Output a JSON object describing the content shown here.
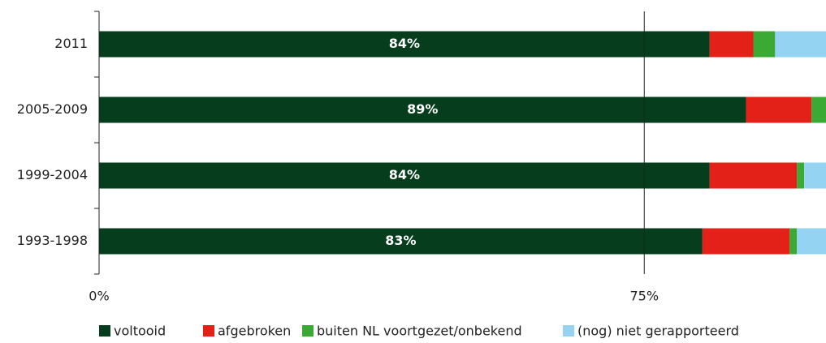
{
  "chart_data": {
    "type": "stacked-barh",
    "categories": [
      "2011",
      "2005-2009",
      "1999-2004",
      "1993-1998"
    ],
    "series": [
      {
        "name": "voltooid",
        "color": "#053d1d",
        "values": [
          84,
          89,
          84,
          83
        ],
        "value_labels": [
          "84%",
          "89%",
          "84%",
          "83%"
        ]
      },
      {
        "name": "afgebroken",
        "color": "#e32119",
        "values": [
          6,
          9,
          12,
          12
        ]
      },
      {
        "name": "buiten NL voortgezet/onbekend",
        "color": "#3aaa35",
        "values": [
          3,
          2,
          1,
          1
        ]
      },
      {
        "name": "(nog) niet gerapporteerd",
        "color": "#95d3f2",
        "values": [
          7,
          0,
          3,
          4
        ]
      }
    ],
    "xlim": [
      0,
      100
    ],
    "xticks": [
      {
        "value": 0,
        "label": "0%"
      },
      {
        "value": 75,
        "label": "75%"
      }
    ],
    "grid": true,
    "legend": "bottom"
  }
}
